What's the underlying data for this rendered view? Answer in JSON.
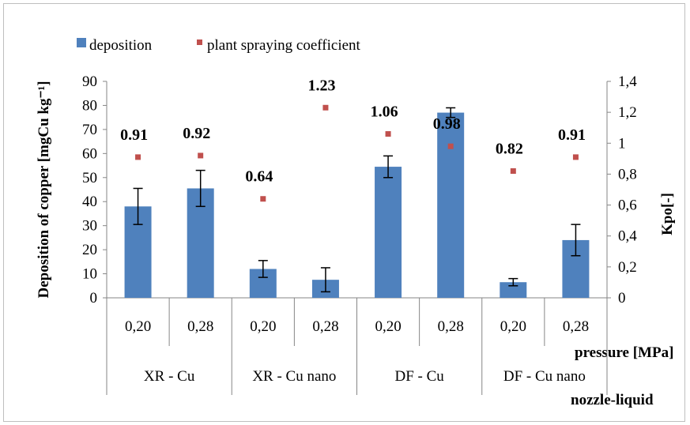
{
  "chart_data": {
    "type": "bar",
    "legend": {
      "placement": "top-left",
      "entries": [
        {
          "name": "deposition",
          "color": "#4f81bd",
          "marker": "bar"
        },
        {
          "name": "plant spraying coefficient",
          "color": "#c0504d",
          "marker": "square"
        }
      ]
    },
    "y_left": {
      "label": "Deposition of copper [mgCu kg⁻¹]",
      "ylim": [
        0,
        90
      ],
      "ticks": [
        "0",
        "10",
        "20",
        "30",
        "40",
        "50",
        "60",
        "70",
        "80",
        "90"
      ]
    },
    "y_right": {
      "label": "Kpo[-]",
      "ylim": [
        0,
        1.4
      ],
      "ticks": [
        "0",
        "0,2",
        "0,4",
        "0,6",
        "0,8",
        "1",
        "1,2",
        "1,4"
      ]
    },
    "x_levels": {
      "pressure_label": "pressure [MPa]",
      "group_label": "nozzle-liquid",
      "pressures": [
        "0,20",
        "0,28",
        "0,20",
        "0,28",
        "0,20",
        "0,28",
        "0,20",
        "0,28"
      ],
      "groups": [
        "XR - Cu",
        "XR - Cu nano",
        "DF - Cu",
        "DF - Cu nano"
      ]
    },
    "series": [
      {
        "name": "deposition",
        "values": [
          38,
          45.5,
          12,
          7.5,
          54.5,
          77,
          6.5,
          24
        ],
        "errors": [
          7.5,
          7.5,
          3.5,
          5,
          4.5,
          2,
          1.5,
          6.5
        ]
      },
      {
        "name": "plant spraying coefficient",
        "values": [
          0.91,
          0.92,
          0.64,
          1.23,
          1.06,
          0.98,
          0.82,
          0.91
        ]
      }
    ],
    "data_labels": [
      "0.91",
      "0.92",
      "0.64",
      "1.23",
      "1.06",
      "0.98",
      "0.82",
      "0.91"
    ],
    "grid": false
  }
}
